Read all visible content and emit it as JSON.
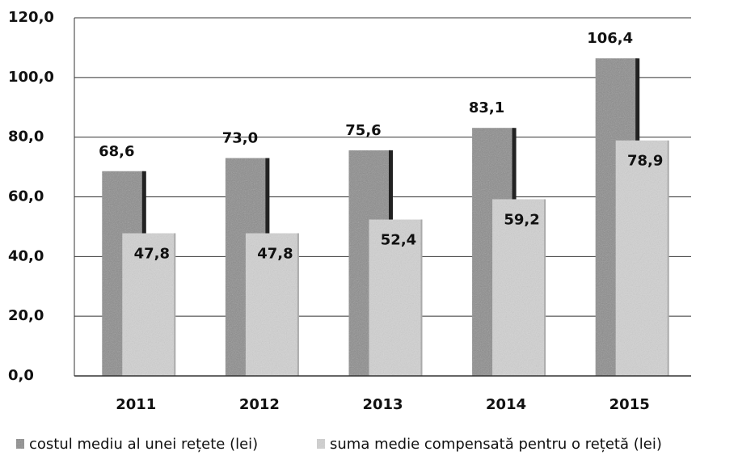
{
  "chart_data": {
    "type": "bar",
    "categories": [
      "2011",
      "2012",
      "2013",
      "2014",
      "2015"
    ],
    "series": [
      {
        "name": "costul mediu al unei rețete (lei)",
        "color": "#8c8c8c",
        "values": [
          68.6,
          73.0,
          75.6,
          83.1,
          106.4
        ],
        "value_labels": [
          "68,6",
          "73,0",
          "75,6",
          "83,1",
          "106,4"
        ]
      },
      {
        "name": "suma medie compensată pentru o rețetă (lei)",
        "color": "#d2d2d2",
        "values": [
          47.8,
          47.8,
          52.4,
          59.2,
          78.9
        ],
        "value_labels": [
          "47,8",
          "47,8",
          "52,4",
          "59,2",
          "78,9"
        ]
      }
    ],
    "ylim": [
      0,
      120
    ],
    "yticks": [
      {
        "value": 0,
        "label": "0,0"
      },
      {
        "value": 20,
        "label": "20,0"
      },
      {
        "value": 40,
        "label": "40,0"
      },
      {
        "value": 60,
        "label": "60,0"
      },
      {
        "value": 80,
        "label": "80,0"
      },
      {
        "value": 100,
        "label": "100,0"
      },
      {
        "value": 120,
        "label": "120,0"
      }
    ],
    "grid": true,
    "legend": "bottom"
  }
}
